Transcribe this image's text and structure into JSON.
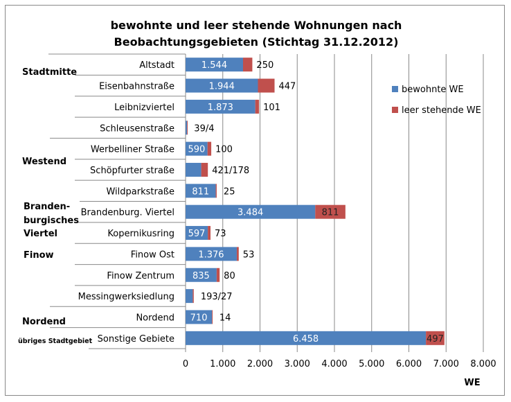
{
  "chart_data": {
    "type": "bar",
    "orientation": "horizontal",
    "stacked": true,
    "title": [
      "bewohnte und leer stehende Wohnungen nach",
      "Beobachtungsgebieten (Stichtag 31.12.2012)"
    ],
    "xlabel": "WE",
    "xlim": [
      0,
      8000
    ],
    "xticks": [
      "0",
      "1.000",
      "2.000",
      "3.000",
      "4.000",
      "5.000",
      "6.000",
      "7.000",
      "8.000"
    ],
    "xtick_values": [
      0,
      1000,
      2000,
      3000,
      4000,
      5000,
      6000,
      7000,
      8000
    ],
    "grid": "vertical",
    "legend_position": "top-right",
    "colors": {
      "bewohnte": "#4f81bd",
      "leer": "#c0504d"
    },
    "series": [
      {
        "name": "bewohnte WE"
      },
      {
        "name": "leer stehende WE"
      }
    ],
    "groups": [
      "Stadtmitte",
      "Westend",
      "Branden-",
      "burgisches",
      "Viertel",
      "Finow",
      "Nordend",
      "übriges Stadtgebiet"
    ],
    "categories": [
      "Altstadt",
      "Eisenbahnstraße",
      "Leibnizviertel",
      "Schleusenstraße",
      "Werbelliner Straße",
      "Schöpfurter straße",
      "Wildparkstraße",
      "Brandenburg. Viertel",
      "Kopernikusring",
      "Finow Ost",
      "Finow Zentrum",
      "Messingwerksiedlung",
      "Nordend",
      "Sonstige Gebiete"
    ],
    "bewohnte": [
      1544,
      1944,
      1873,
      39,
      590,
      421,
      811,
      3484,
      597,
      1376,
      835,
      193,
      710,
      6458
    ],
    "leer": [
      250,
      447,
      101,
      4,
      100,
      178,
      25,
      811,
      73,
      53,
      80,
      27,
      14,
      497
    ],
    "inner_labels": [
      "1.544",
      "1.944",
      "1.873",
      "",
      "590",
      "",
      "811",
      "3.484",
      "597",
      "1.376",
      "835",
      "",
      "710",
      "6.458"
    ],
    "outer_labels": [
      "250",
      "447",
      "101",
      "39/4",
      "100",
      "421/178",
      "25",
      "811",
      "73",
      "53",
      "80",
      "193/27",
      "14",
      "497"
    ]
  }
}
